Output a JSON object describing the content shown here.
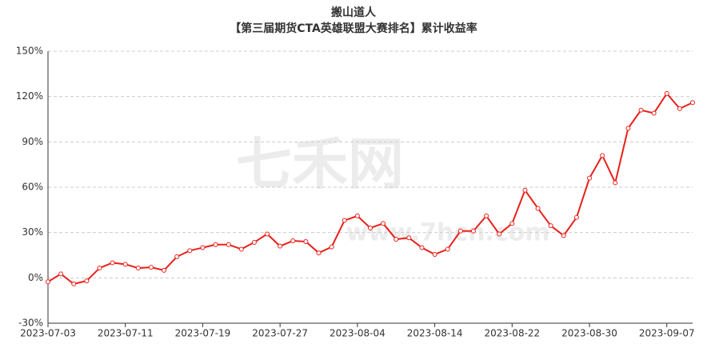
{
  "chart_data": {
    "type": "line",
    "title": "搬山道人",
    "subtitle": "【第三届期货CTA英雄联盟大赛排名】累计收益率",
    "watermark": "七禾网",
    "watermark_url": "www.7hcn.com",
    "categories": [
      "2023-07-03",
      null,
      null,
      null,
      null,
      null,
      "2023-07-11",
      null,
      null,
      null,
      null,
      null,
      "2023-07-19",
      null,
      null,
      null,
      null,
      null,
      "2023-07-27",
      null,
      null,
      null,
      null,
      null,
      "2023-08-04",
      null,
      null,
      null,
      null,
      null,
      "2023-08-14",
      null,
      null,
      null,
      null,
      null,
      "2023-08-22",
      null,
      null,
      null,
      null,
      null,
      "2023-08-30",
      null,
      null,
      null,
      null,
      null,
      "2023-09-07",
      null,
      null
    ],
    "series": [
      {
        "name": "累计收益率",
        "color": "#e8201a",
        "values": [
          -2.6,
          2.6,
          -4,
          -2,
          6.5,
          10,
          9,
          6.5,
          7,
          5,
          14,
          18,
          20,
          22,
          22,
          19,
          23.5,
          29,
          21,
          24.5,
          24,
          16.5,
          20.5,
          38,
          41,
          33,
          36,
          25.5,
          26.5,
          20,
          15.5,
          19,
          31,
          31,
          41,
          29,
          36,
          58,
          46,
          34.5,
          28,
          40,
          66,
          81,
          63,
          99,
          111,
          109,
          122,
          112,
          116
        ]
      }
    ],
    "ylim": [
      -30,
      150
    ],
    "yticks": [
      {
        "value": -30,
        "label": "-30%"
      },
      {
        "value": 0,
        "label": "0%"
      },
      {
        "value": 30,
        "label": "30%"
      },
      {
        "value": 60,
        "label": "60%"
      },
      {
        "value": 90,
        "label": "90%"
      },
      {
        "value": 120,
        "label": "120%"
      },
      {
        "value": 150,
        "label": "150%"
      }
    ],
    "grid": true
  }
}
